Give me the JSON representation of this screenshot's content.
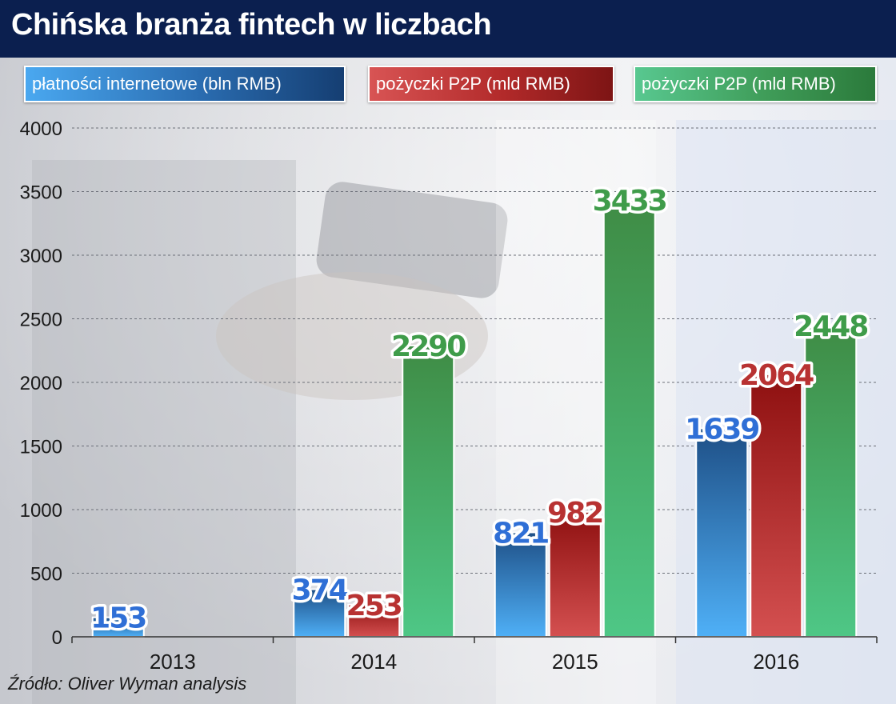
{
  "header": {
    "title": "Chińska branża fintech w liczbach"
  },
  "legend": [
    {
      "label": "płatności internetowe (bln RMB)",
      "color": "#3d8fd8"
    },
    {
      "label": "pożyczki P2P (mld RMB)",
      "color": "#b92b2b"
    },
    {
      "label": "pożyczki P2P (mld RMB)",
      "color": "#46a862"
    }
  ],
  "source": "Źródło: Oliver Wyman analysis",
  "chart_data": {
    "type": "bar",
    "categories": [
      "2013",
      "2014",
      "2015",
      "2016"
    ],
    "series": [
      {
        "name": "płatności internetowe (bln RMB)",
        "values": [
          153,
          374,
          821,
          1639
        ],
        "color": "#3d8fd8",
        "label_color": "#2f6fd6"
      },
      {
        "name": "pożyczki P2P (mld RMB)",
        "values": [
          null,
          253,
          982,
          2064
        ],
        "color": "#b92b2b",
        "label_color": "#b83232"
      },
      {
        "name": "pożyczki P2P (mld RMB)",
        "values": [
          null,
          2290,
          3433,
          2448
        ],
        "color": "#46a862",
        "label_color": "#3f9c4a"
      }
    ],
    "ylim": [
      0,
      4000
    ],
    "yticks": [
      0,
      500,
      1000,
      1500,
      2000,
      2500,
      3000,
      3500,
      4000
    ],
    "grid": true,
    "legend_position": "top"
  }
}
